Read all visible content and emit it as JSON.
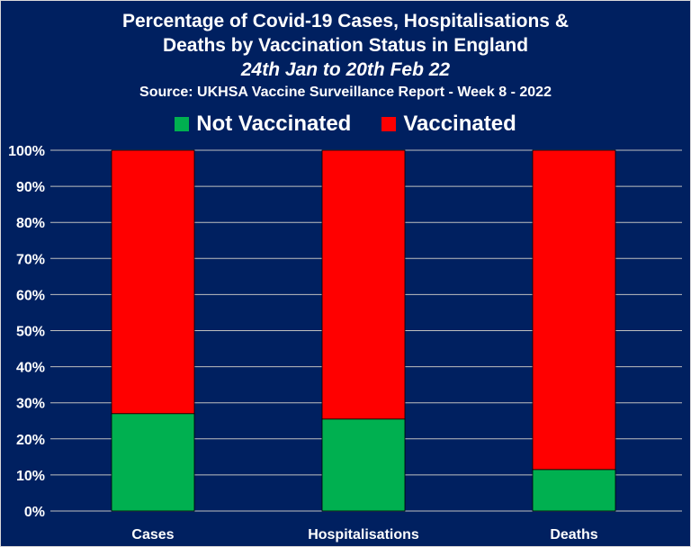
{
  "chart_data": {
    "type": "bar",
    "stacked": true,
    "title_lines": [
      "Percentage of Covid-19 Cases, Hospitalisations &",
      "Deaths by Vaccination Status in England"
    ],
    "subtitle": "24th Jan to 20th Feb 22",
    "source": "Source: UKHSA Vaccine Surveillance Report - Week 8 - 2022",
    "categories": [
      "Cases",
      "Hospitalisations",
      "Deaths"
    ],
    "series": [
      {
        "name": "Not Vaccinated",
        "color": "#00b050",
        "values": [
          27,
          25.5,
          11.5
        ]
      },
      {
        "name": "Vaccinated",
        "color": "#ff0000",
        "values": [
          73,
          74.5,
          88.5
        ]
      }
    ],
    "ylim": [
      0,
      100
    ],
    "yticks": [
      "0%",
      "10%",
      "20%",
      "30%",
      "40%",
      "50%",
      "60%",
      "70%",
      "80%",
      "90%",
      "100%"
    ],
    "grid": true,
    "legend_position": "top-center"
  }
}
